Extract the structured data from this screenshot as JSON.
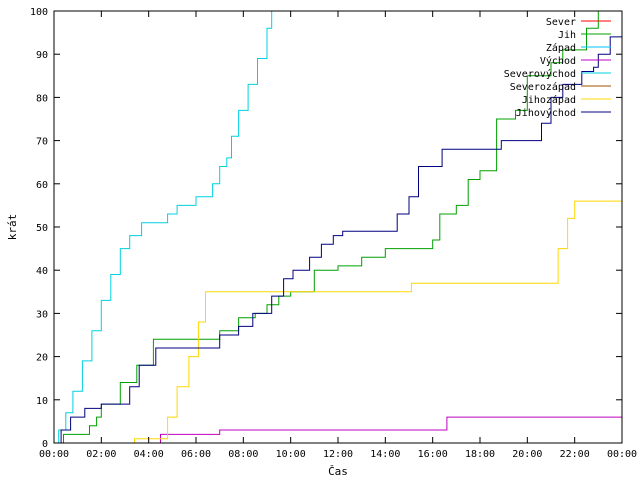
{
  "chart_data": {
    "type": "line",
    "title": "",
    "xlabel": "Čas",
    "ylabel": "krát",
    "xlim": [
      0,
      24
    ],
    "ylim": [
      0,
      100
    ],
    "x_ticks": [
      0,
      2,
      4,
      6,
      8,
      10,
      12,
      14,
      16,
      18,
      20,
      22,
      24
    ],
    "x_tick_labels": [
      "00:00",
      "02:00",
      "04:00",
      "06:00",
      "08:00",
      "10:00",
      "12:00",
      "14:00",
      "16:00",
      "18:00",
      "20:00",
      "22:00",
      "00:00"
    ],
    "y_ticks": [
      0,
      10,
      20,
      30,
      40,
      50,
      60,
      70,
      80,
      90,
      100
    ],
    "y_tick_labels": [
      "0",
      "10",
      "20",
      "30",
      "40",
      "50",
      "60",
      "70",
      "80",
      "90",
      "100"
    ],
    "grid": false,
    "legend_position": "top-right",
    "x_unit": "hours",
    "series": [
      {
        "name": "Sever",
        "color": "#ff0000",
        "points": []
      },
      {
        "name": "Jih",
        "color": "#00a000",
        "points": [
          [
            0,
            0
          ],
          [
            0.4,
            2
          ],
          [
            1.5,
            4
          ],
          [
            1.8,
            6
          ],
          [
            2,
            9
          ],
          [
            2.8,
            14
          ],
          [
            3.5,
            18
          ],
          [
            4.2,
            24
          ],
          [
            6.5,
            24
          ],
          [
            7,
            26
          ],
          [
            7.8,
            29
          ],
          [
            8.5,
            30
          ],
          [
            9,
            32
          ],
          [
            9.5,
            34
          ],
          [
            10,
            35
          ],
          [
            11,
            40
          ],
          [
            12,
            41
          ],
          [
            13,
            43
          ],
          [
            14,
            45
          ],
          [
            15.5,
            45
          ],
          [
            16,
            47
          ],
          [
            16.3,
            53
          ],
          [
            17,
            55
          ],
          [
            17.5,
            61
          ],
          [
            18,
            63
          ],
          [
            18.7,
            75
          ],
          [
            19.5,
            77
          ],
          [
            20,
            85
          ],
          [
            21,
            88
          ],
          [
            21.5,
            91
          ],
          [
            22.5,
            96
          ],
          [
            23,
            100
          ]
        ]
      },
      {
        "name": "Západ",
        "color": "#00c0ff",
        "points": []
      },
      {
        "name": "Východ",
        "color": "#c000c0",
        "points": [
          [
            4.4,
            0
          ],
          [
            4.5,
            2
          ],
          [
            6.5,
            2
          ],
          [
            7,
            3
          ],
          [
            16.5,
            3
          ],
          [
            16.6,
            6
          ],
          [
            24,
            6
          ]
        ]
      },
      {
        "name": "Severovýchod",
        "color": "#00d0e0",
        "points": [
          [
            0,
            0
          ],
          [
            0.2,
            3
          ],
          [
            0.5,
            7
          ],
          [
            0.8,
            12
          ],
          [
            1.2,
            19
          ],
          [
            1.6,
            26
          ],
          [
            2,
            33
          ],
          [
            2.4,
            39
          ],
          [
            2.8,
            45
          ],
          [
            3.2,
            48
          ],
          [
            3.7,
            51
          ],
          [
            4.4,
            51
          ],
          [
            4.8,
            53
          ],
          [
            5.2,
            55
          ],
          [
            6,
            57
          ],
          [
            6.6,
            57
          ],
          [
            6.7,
            60
          ],
          [
            7,
            64
          ],
          [
            7.3,
            66
          ],
          [
            7.5,
            71
          ],
          [
            7.8,
            77
          ],
          [
            8.2,
            83
          ],
          [
            8.6,
            89
          ],
          [
            9,
            96
          ],
          [
            9.2,
            100
          ]
        ]
      },
      {
        "name": "Severozápad",
        "color": "#a05000",
        "points": []
      },
      {
        "name": "Jihozápad",
        "color": "#ffd800",
        "points": [
          [
            3.3,
            0
          ],
          [
            3.4,
            1
          ],
          [
            4.5,
            1
          ],
          [
            4.8,
            6
          ],
          [
            5.2,
            13
          ],
          [
            5.7,
            20
          ],
          [
            6.1,
            28
          ],
          [
            6.4,
            35
          ],
          [
            15,
            35
          ],
          [
            15.1,
            37
          ],
          [
            21,
            37
          ],
          [
            21.3,
            45
          ],
          [
            21.7,
            52
          ],
          [
            22,
            56
          ],
          [
            24,
            56
          ]
        ]
      },
      {
        "name": "Jihovýchod",
        "color": "#000080",
        "points": [
          [
            0,
            0
          ],
          [
            0.3,
            3
          ],
          [
            0.7,
            6
          ],
          [
            1.3,
            8
          ],
          [
            2,
            9
          ],
          [
            3.2,
            13
          ],
          [
            3.6,
            18
          ],
          [
            4.3,
            22
          ],
          [
            6.6,
            22
          ],
          [
            7,
            25
          ],
          [
            7.8,
            27
          ],
          [
            8.4,
            30
          ],
          [
            9.2,
            34
          ],
          [
            9.7,
            38
          ],
          [
            10.1,
            40
          ],
          [
            10.8,
            43
          ],
          [
            11.3,
            46
          ],
          [
            11.8,
            48
          ],
          [
            12.2,
            49
          ],
          [
            14,
            49
          ],
          [
            14.5,
            53
          ],
          [
            15,
            57
          ],
          [
            15.4,
            64
          ],
          [
            16,
            64
          ],
          [
            16.4,
            68
          ],
          [
            18.4,
            68
          ],
          [
            18.9,
            70
          ],
          [
            20.2,
            70
          ],
          [
            20.6,
            74
          ],
          [
            21,
            80
          ],
          [
            21.5,
            83
          ],
          [
            22.3,
            86
          ],
          [
            22.8,
            87
          ],
          [
            23,
            90
          ],
          [
            23.5,
            94
          ],
          [
            24,
            94
          ]
        ]
      }
    ]
  }
}
